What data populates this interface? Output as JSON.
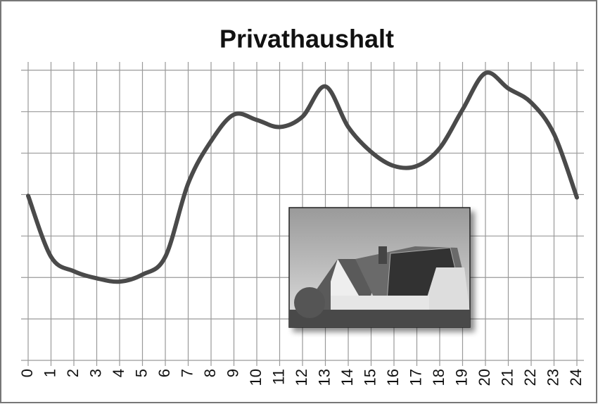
{
  "chart_data": {
    "type": "line",
    "title": "Privathaushalt",
    "x": [
      0,
      1,
      2,
      3,
      4,
      5,
      6,
      7,
      8,
      9,
      10,
      11,
      12,
      13,
      14,
      15,
      16,
      17,
      18,
      19,
      20,
      21,
      22,
      23,
      24
    ],
    "values": [
      3.97,
      2.5,
      2.15,
      1.98,
      1.9,
      2.07,
      2.5,
      4.27,
      5.29,
      5.93,
      5.8,
      5.63,
      5.88,
      6.61,
      5.63,
      5.03,
      4.69,
      4.69,
      5.12,
      6.05,
      6.93,
      6.56,
      6.22,
      5.46,
      3.93
    ],
    "color": "#4a4a4a",
    "xlim": [
      0,
      24
    ],
    "ylim": [
      0,
      7.2
    ],
    "yticks": [
      0,
      1,
      2,
      3,
      4,
      5,
      6,
      7
    ],
    "show_ytick_labels": false,
    "grid": true
  }
}
